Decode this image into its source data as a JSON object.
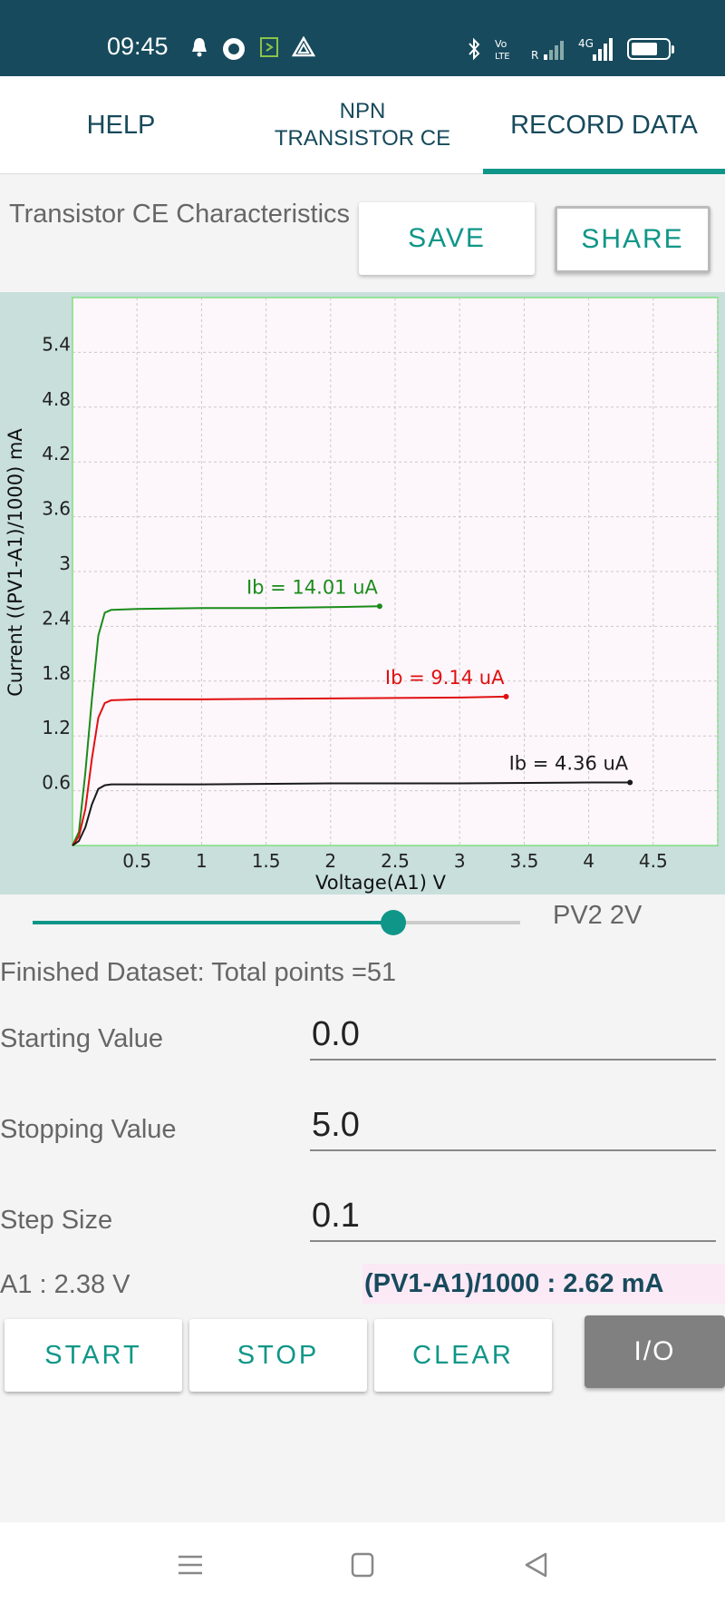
{
  "status_bar": {
    "time": "09:45",
    "icons": [
      "notification-bell-icon",
      "record-icon",
      "app-icon",
      "drive-icon"
    ],
    "right_icons": [
      "bluetooth-icon",
      "volte-icon",
      "signal-icon",
      "4g-signal-icon",
      "battery-icon"
    ],
    "network_label": "4G",
    "battery_level": 0.7
  },
  "tabs": [
    {
      "label": "HELP",
      "active": false
    },
    {
      "label": "NPN\nTRANSISTOR CE",
      "active": false
    },
    {
      "label": "RECORD DATA",
      "active": true
    }
  ],
  "header": {
    "plot_title": "Transistor CE Characteristics",
    "save_label": "SAVE",
    "share_label": "SHARE"
  },
  "chart_data": {
    "type": "line",
    "xlabel": "Voltage(A1) V",
    "ylabel": "Current ((PV1-A1)/1000) mA",
    "xlim": [
      0,
      5
    ],
    "ylim": [
      0,
      6
    ],
    "xticks": [
      "0.5",
      "1",
      "1.5",
      "2",
      "2.5",
      "3",
      "3.5",
      "4",
      "4.5"
    ],
    "yticks": [
      "0.6",
      "1.2",
      "1.8",
      "2.4",
      "3",
      "3.6",
      "4.2",
      "4.8",
      "5.4"
    ],
    "grid": true,
    "series": [
      {
        "name": "Ib = 14.01 uA",
        "color": "#1a8c1a",
        "x": [
          0,
          0.05,
          0.1,
          0.15,
          0.2,
          0.25,
          0.3,
          0.5,
          1.0,
          1.5,
          2.0,
          2.38
        ],
        "y": [
          0,
          0.15,
          0.8,
          1.6,
          2.3,
          2.55,
          2.58,
          2.59,
          2.6,
          2.6,
          2.61,
          2.62
        ]
      },
      {
        "name": "Ib = 9.14 uA",
        "color": "#e01010",
        "x": [
          0,
          0.05,
          0.1,
          0.15,
          0.2,
          0.25,
          0.3,
          0.5,
          1.0,
          2.0,
          3.0,
          3.36
        ],
        "y": [
          0,
          0.1,
          0.4,
          0.95,
          1.4,
          1.56,
          1.59,
          1.6,
          1.6,
          1.61,
          1.62,
          1.63
        ]
      },
      {
        "name": "Ib = 4.36 uA",
        "color": "#1a1a1a",
        "x": [
          0,
          0.05,
          0.1,
          0.15,
          0.2,
          0.25,
          0.3,
          0.5,
          1.0,
          2.0,
          3.0,
          4.0,
          4.32
        ],
        "y": [
          0,
          0.05,
          0.2,
          0.45,
          0.62,
          0.66,
          0.67,
          0.67,
          0.67,
          0.68,
          0.68,
          0.69,
          0.69
        ]
      }
    ]
  },
  "slider": {
    "label": "PV2 2V",
    "fraction": 0.74
  },
  "status": {
    "finished": "Finished Dataset: Total points =51"
  },
  "fields": [
    {
      "label": "Starting Value",
      "value": "0.0"
    },
    {
      "label": "Stopping Value",
      "value": "5.0"
    },
    {
      "label": "Step Size",
      "value": "0.1"
    }
  ],
  "readouts": {
    "a1": "A1 : 2.38 V",
    "current": "(PV1-A1)/1000 : 2.62 mA"
  },
  "actions": {
    "start": "START",
    "stop": "STOP",
    "clear": "CLEAR",
    "io": "I/O"
  },
  "nav_bar": [
    "menu-icon",
    "home-icon",
    "back-icon"
  ]
}
